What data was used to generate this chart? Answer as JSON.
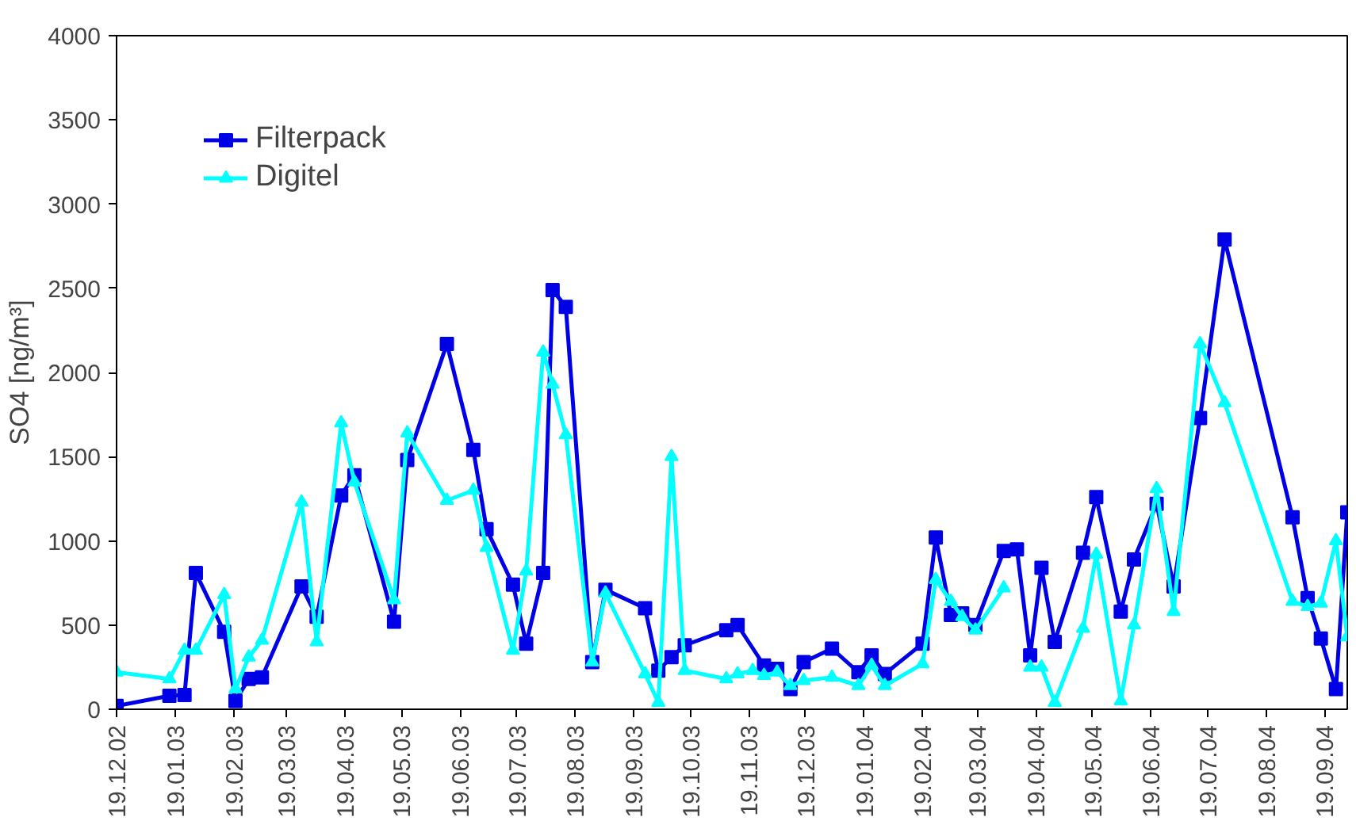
{
  "chart_data": {
    "type": "line",
    "ylabel": "SO4 [ng/m³]",
    "xlim": [
      "2002-12-19",
      "2004-10-01"
    ],
    "ylim": [
      0,
      4000
    ],
    "yticks": [
      0,
      500,
      1000,
      1500,
      2000,
      2500,
      3000,
      3500,
      4000
    ],
    "xticks": [
      {
        "value": "2002-12-19",
        "label": "19.12.02"
      },
      {
        "value": "2003-01-19",
        "label": "19.01.03"
      },
      {
        "value": "2003-02-19",
        "label": "19.02.03"
      },
      {
        "value": "2003-03-19",
        "label": "19.03.03"
      },
      {
        "value": "2003-04-19",
        "label": "19.04.03"
      },
      {
        "value": "2003-05-19",
        "label": "19.05.03"
      },
      {
        "value": "2003-06-19",
        "label": "19.06.03"
      },
      {
        "value": "2003-07-19",
        "label": "19.07.03"
      },
      {
        "value": "2003-08-19",
        "label": "19.08.03"
      },
      {
        "value": "2003-09-19",
        "label": "19.09.03"
      },
      {
        "value": "2003-10-19",
        "label": "19.10.03"
      },
      {
        "value": "2003-11-19",
        "label": "19.11.03"
      },
      {
        "value": "2003-12-19",
        "label": "19.12.03"
      },
      {
        "value": "2004-01-19",
        "label": "19.01.04"
      },
      {
        "value": "2004-02-19",
        "label": "19.02.04"
      },
      {
        "value": "2004-03-19",
        "label": "19.03.04"
      },
      {
        "value": "2004-04-19",
        "label": "19.04.04"
      },
      {
        "value": "2004-05-19",
        "label": "19.05.04"
      },
      {
        "value": "2004-06-19",
        "label": "19.06.04"
      },
      {
        "value": "2004-07-19",
        "label": "19.07.04"
      },
      {
        "value": "2004-08-19",
        "label": "19.08.04"
      },
      {
        "value": "2004-09-19",
        "label": "19.09.04"
      }
    ],
    "grid": false,
    "legend": "top left",
    "line_style": "solid",
    "series": [
      {
        "name": "Filterpack",
        "color": "#0000e6",
        "marker": "square",
        "x": [
          "2002-12-19",
          "2003-01-16",
          "2003-01-24",
          "2003-01-30",
          "2003-02-14",
          "2003-02-20",
          "2003-02-27",
          "2003-03-06",
          "2003-03-27",
          "2003-04-04",
          "2003-04-17",
          "2003-04-24",
          "2003-05-15",
          "2003-05-22",
          "2003-06-12",
          "2003-06-26",
          "2003-07-03",
          "2003-07-17",
          "2003-07-24",
          "2003-08-02",
          "2003-08-07",
          "2003-08-14",
          "2003-08-28",
          "2003-09-04",
          "2003-09-25",
          "2003-10-02",
          "2003-10-09",
          "2003-10-16",
          "2003-11-07",
          "2003-11-13",
          "2003-11-27",
          "2003-12-04",
          "2003-12-11",
          "2003-12-18",
          "2004-01-02",
          "2004-01-16",
          "2004-01-23",
          "2004-01-30",
          "2004-02-19",
          "2004-02-26",
          "2004-03-05",
          "2004-03-11",
          "2004-03-18",
          "2004-04-02",
          "2004-04-09",
          "2004-04-16",
          "2004-04-22",
          "2004-04-29",
          "2004-05-14",
          "2004-05-21",
          "2004-06-03",
          "2004-06-10",
          "2004-06-22",
          "2004-07-01",
          "2004-07-15",
          "2004-07-28",
          "2004-09-02",
          "2004-09-10",
          "2004-09-17",
          "2004-09-25",
          "2004-10-01"
        ],
        "values": [
          20,
          80,
          85,
          810,
          460,
          50,
          180,
          190,
          730,
          550,
          1270,
          1390,
          520,
          1480,
          2170,
          1540,
          1070,
          740,
          390,
          810,
          2490,
          2390,
          280,
          710,
          600,
          230,
          310,
          380,
          470,
          500,
          260,
          240,
          120,
          280,
          360,
          220,
          320,
          210,
          390,
          1020,
          560,
          570,
          500,
          940,
          950,
          320,
          840,
          400,
          930,
          1260,
          580,
          890,
          1220,
          730,
          1730,
          2790,
          1140,
          660,
          420,
          120,
          1170
        ]
      },
      {
        "name": "Digitel",
        "color": "#00ffff",
        "marker": "triangle",
        "x": [
          "2002-12-19",
          "2003-01-16",
          "2003-01-24",
          "2003-01-30",
          "2003-02-14",
          "2003-02-20",
          "2003-02-27",
          "2003-03-06",
          "2003-03-27",
          "2003-04-04",
          "2003-04-17",
          "2003-04-24",
          "2003-05-15",
          "2003-05-22",
          "2003-06-12",
          "2003-06-26",
          "2003-07-03",
          "2003-07-17",
          "2003-07-24",
          "2003-08-02",
          "2003-08-07",
          "2003-08-14",
          "2003-08-28",
          "2003-09-04",
          "2003-09-25",
          "2003-10-02",
          "2003-10-09",
          "2003-10-16",
          "2003-11-07",
          "2003-11-13",
          "2003-11-21",
          "2003-11-27",
          "2003-12-04",
          "2003-12-11",
          "2003-12-18",
          "2004-01-02",
          "2004-01-16",
          "2004-01-23",
          "2004-01-30",
          "2004-02-19",
          "2004-02-26",
          "2004-03-05",
          "2004-03-11",
          "2004-03-18",
          "2004-04-02",
          "2004-04-09",
          "2004-04-16",
          "2004-04-22",
          "2004-04-29",
          "2004-05-14",
          "2004-05-21",
          "2004-06-03",
          "2004-06-10",
          "2004-06-22",
          "2004-07-01",
          "2004-07-15",
          "2004-07-28",
          "2004-09-02",
          "2004-09-10",
          "2004-09-17",
          "2004-09-25",
          "2004-10-01"
        ],
        "values": [
          220,
          180,
          350,
          350,
          680,
          120,
          310,
          410,
          1230,
          400,
          1700,
          1350,
          650,
          1640,
          1240,
          1300,
          960,
          350,
          820,
          2120,
          1930,
          1630,
          280,
          690,
          210,
          40,
          1500,
          230,
          180,
          210,
          230,
          200,
          220,
          140,
          170,
          190,
          140,
          260,
          140,
          270,
          770,
          640,
          550,
          470,
          720,
          null,
          250,
          250,
          40,
          480,
          920,
          50,
          500,
          1310,
          580,
          2170,
          1820,
          640,
          610,
          630,
          1000,
          430
        ]
      }
    ]
  }
}
